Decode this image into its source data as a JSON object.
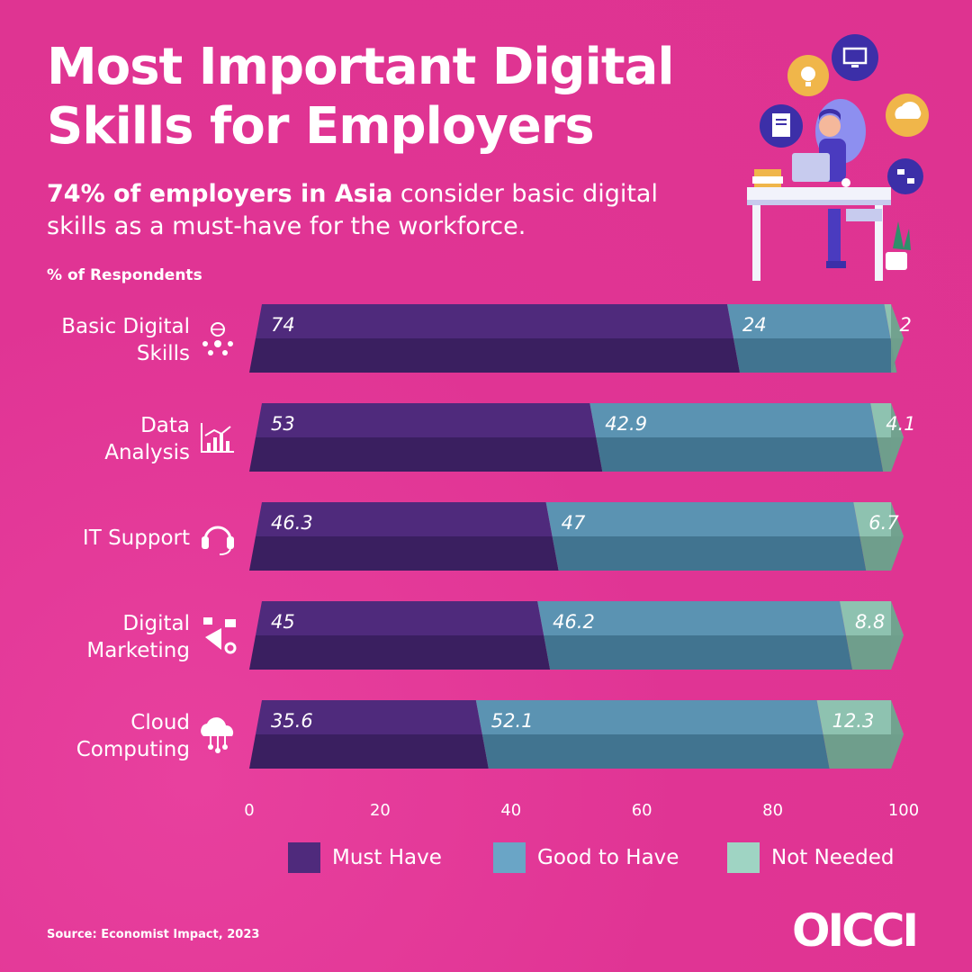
{
  "header": {
    "title": "Most Important Digital Skills for Employers",
    "subtitle_bold": "74% of employers in Asia",
    "subtitle_rest": " consider basic digital skills as a must-have for the workforce."
  },
  "footer": {
    "source": "Source: Economist Impact, 2023",
    "logo_text": "OICCI"
  },
  "chart_data": {
    "type": "bar",
    "orientation": "horizontal",
    "stacked": true,
    "ylabel": "% of Respondents",
    "xlim": [
      0,
      100
    ],
    "xticks": [
      0,
      20,
      40,
      60,
      80,
      100
    ],
    "categories": [
      {
        "label_lines": [
          "Basic Digital",
          "Skills"
        ],
        "icon": "globe-network-icon"
      },
      {
        "label_lines": [
          "Data",
          "Analysis"
        ],
        "icon": "bar-chart-icon"
      },
      {
        "label_lines": [
          "IT Support"
        ],
        "icon": "headset-icon"
      },
      {
        "label_lines": [
          "Digital",
          "Marketing"
        ],
        "icon": "megaphone-icon"
      },
      {
        "label_lines": [
          "Cloud",
          "Computing"
        ],
        "icon": "cloud-icon"
      }
    ],
    "series": [
      {
        "name": "Must Have",
        "values": [
          74,
          53,
          46.3,
          45,
          35.6
        ],
        "labels": [
          "74",
          "53",
          "46.3",
          "45",
          "35.6"
        ],
        "color": "#4f2a7c",
        "color_dark": "#3a1f60"
      },
      {
        "name": "Good to Have",
        "values": [
          24,
          42.9,
          47,
          46.2,
          52.1
        ],
        "labels": [
          "24",
          "42.9",
          "47",
          "46.2",
          "52.1"
        ],
        "color": "#5b93b2",
        "color_dark": "#417490"
      },
      {
        "name": "Not Needed",
        "values": [
          2,
          4.1,
          6.7,
          8.8,
          12.3
        ],
        "labels": [
          "2",
          "4.1",
          "6.7",
          "8.8",
          "12.3"
        ],
        "color": "#8ec2b0",
        "color_dark": "#6f9e8c"
      }
    ],
    "legend_position": "bottom",
    "grid": false
  }
}
